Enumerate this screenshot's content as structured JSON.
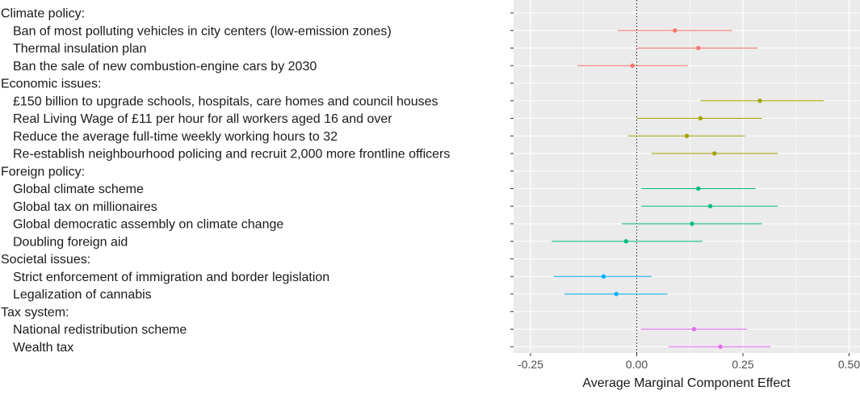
{
  "chart_data": {
    "type": "scatter",
    "xlabel": "Average Marginal Component Effect",
    "xlim": [
      -0.3,
      0.52
    ],
    "xticks": [
      -0.25,
      0.0,
      0.25,
      0.5
    ],
    "xtick_labels": [
      "-0.25",
      "0.00",
      "0.25",
      "0.50"
    ],
    "reference_line": 0.0,
    "grid": true,
    "legend": "none",
    "rows": [
      {
        "label": "Climate policy:",
        "header": true
      },
      {
        "label": "Ban of most polluting vehicles in city centers (low-emission zones)",
        "group": "Climate policy",
        "estimate": 0.09,
        "lower": -0.045,
        "upper": 0.225
      },
      {
        "label": "Thermal insulation plan",
        "group": "Climate policy",
        "estimate": 0.145,
        "lower": 0.0,
        "upper": 0.285
      },
      {
        "label": "Ban the sale of new combustion-engine cars by 2030",
        "group": "Climate policy",
        "estimate": -0.01,
        "lower": -0.14,
        "upper": 0.12
      },
      {
        "label": "Economic issues:",
        "header": true
      },
      {
        "label": "£150 billion to upgrade schools, hospitals, care homes and council houses",
        "group": "Economic issues",
        "estimate": 0.29,
        "lower": 0.15,
        "upper": 0.44
      },
      {
        "label": "Real Living Wage of £11 per hour for all workers aged 16 and over",
        "group": "Economic issues",
        "estimate": 0.15,
        "lower": 0.0,
        "upper": 0.295
      },
      {
        "label": "Reduce the average full-time weekly working hours to 32",
        "group": "Economic issues",
        "estimate": 0.118,
        "lower": -0.02,
        "upper": 0.255
      },
      {
        "label": "Re-establish neighbourhood policing and recruit 2,000 more frontline officers",
        "group": "Economic issues",
        "estimate": 0.183,
        "lower": 0.035,
        "upper": 0.332
      },
      {
        "label": "Foreign policy:",
        "header": true
      },
      {
        "label": "Global climate scheme",
        "group": "Foreign policy",
        "estimate": 0.145,
        "lower": 0.01,
        "upper": 0.28
      },
      {
        "label": "Global tax on millionaires",
        "group": "Foreign policy",
        "estimate": 0.173,
        "lower": 0.01,
        "upper": 0.332
      },
      {
        "label": "Global democratic assembly on climate change",
        "group": "Foreign policy",
        "estimate": 0.13,
        "lower": -0.035,
        "upper": 0.295
      },
      {
        "label": "Doubling foreign aid",
        "group": "Foreign policy",
        "estimate": -0.025,
        "lower": -0.2,
        "upper": 0.155
      },
      {
        "label": "Societal issues:",
        "header": true
      },
      {
        "label": "Strict enforcement of immigration and border legislation",
        "group": "Societal issues",
        "estimate": -0.078,
        "lower": -0.195,
        "upper": 0.035
      },
      {
        "label": "Legalization of cannabis",
        "group": "Societal issues",
        "estimate": -0.048,
        "lower": -0.17,
        "upper": 0.072
      },
      {
        "label": "Tax system:",
        "header": true
      },
      {
        "label": "National redistribution scheme",
        "group": "Tax system",
        "estimate": 0.135,
        "lower": 0.01,
        "upper": 0.26
      },
      {
        "label": "Wealth tax",
        "group": "Tax system",
        "estimate": 0.197,
        "lower": 0.075,
        "upper": 0.315
      }
    ],
    "group_colors": {
      "Climate policy": "#F8766D",
      "Economic issues": "#A3A500",
      "Foreign policy": "#00BF7D",
      "Societal issues": "#00B0F6",
      "Tax system": "#E76BF3"
    },
    "panel_background": "#EBEBEB",
    "gridline_color": "#FFFFFF"
  }
}
